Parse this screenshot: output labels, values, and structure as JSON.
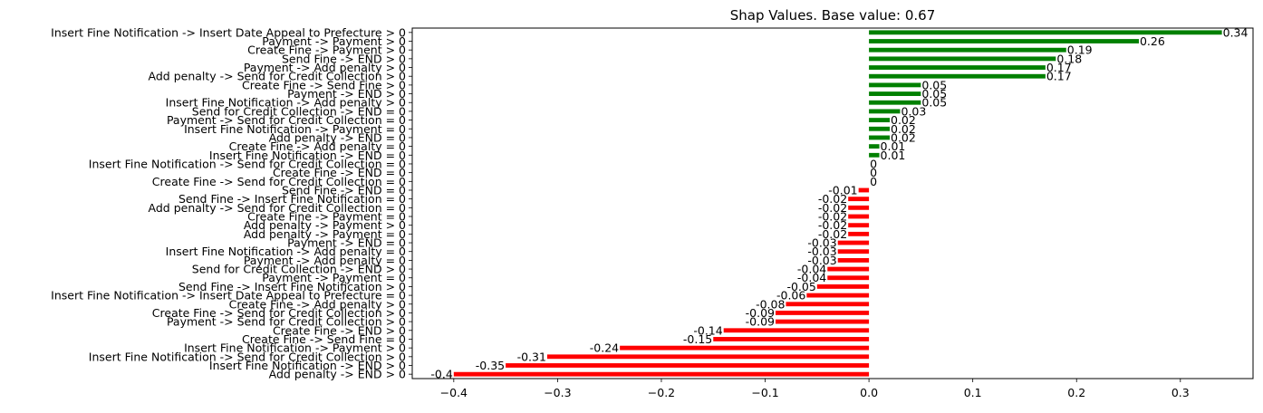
{
  "colors": {
    "positive": "#008000",
    "negative": "#ff0000",
    "axis": "#000000",
    "background": "#ffffff"
  },
  "chart_data": {
    "type": "bar",
    "orientation": "horizontal",
    "title": "Shap Values. Base value: 0.67",
    "xlabel": "",
    "ylabel": "",
    "xlim": [
      -0.44,
      0.37
    ],
    "xticks": [
      -0.4,
      -0.3,
      -0.2,
      -0.1,
      0.0,
      0.1,
      0.2,
      0.3
    ],
    "xtick_labels": [
      "−0.4",
      "−0.3",
      "−0.2",
      "−0.1",
      "0.0",
      "0.1",
      "0.2",
      "0.3"
    ],
    "grid": false,
    "legend": "none",
    "categories": [
      "Insert Fine Notification -> Insert Date Appeal to Prefecture > 0",
      "Payment -> Payment > 0",
      "Create Fine -> Payment > 0",
      "Send Fine -> END > 0",
      "Payment -> Add penalty > 0",
      "Add penalty -> Send for Credit Collection > 0",
      "Create Fine -> Send Fine > 0",
      "Payment -> END > 0",
      "Insert Fine Notification -> Add penalty > 0",
      "Send for Credit Collection -> END = 0",
      "Payment -> Send for Credit Collection = 0",
      "Insert Fine Notification -> Payment = 0",
      "Add penalty -> END = 0",
      "Create Fine -> Add penalty = 0",
      "Insert Fine Notification -> END = 0",
      "Insert Fine Notification -> Send for Credit Collection = 0",
      "Create Fine -> END = 0",
      "Create Fine -> Send for Credit Collection = 0",
      "Send Fine -> END = 0",
      "Send Fine -> Insert Fine Notification = 0",
      "Add penalty -> Send for Credit Collection = 0",
      "Create Fine -> Payment = 0",
      "Add penalty -> Payment > 0",
      "Add penalty -> Payment = 0",
      "Payment -> END = 0",
      "Insert Fine Notification -> Add penalty = 0",
      "Payment -> Add penalty = 0",
      "Send for Credit Collection -> END > 0",
      "Payment -> Payment = 0",
      "Send Fine -> Insert Fine Notification > 0",
      "Insert Fine Notification -> Insert Date Appeal to Prefecture = 0",
      "Create Fine -> Add penalty > 0",
      "Create Fine -> Send for Credit Collection > 0",
      "Payment -> Send for Credit Collection > 0",
      "Create Fine -> END > 0",
      "Create Fine -> Send Fine = 0",
      "Insert Fine Notification -> Payment > 0",
      "Insert Fine Notification -> Send for Credit Collection > 0",
      "Insert Fine Notification -> END > 0",
      "Add penalty -> END > 0"
    ],
    "values": [
      0.34,
      0.26,
      0.19,
      0.18,
      0.17,
      0.17,
      0.05,
      0.05,
      0.05,
      0.03,
      0.02,
      0.02,
      0.02,
      0.01,
      0.01,
      0,
      0,
      0,
      -0.01,
      -0.02,
      -0.02,
      -0.02,
      -0.02,
      -0.02,
      -0.03,
      -0.03,
      -0.03,
      -0.04,
      -0.04,
      -0.05,
      -0.06,
      -0.08,
      -0.09,
      -0.09,
      -0.14,
      -0.15,
      -0.24,
      -0.31,
      -0.35,
      -0.4
    ],
    "value_labels": [
      "0.34",
      "0.26",
      "0.19",
      "0.18",
      "0.17",
      "0.17",
      "0.05",
      "0.05",
      "0.05",
      "0.03",
      "0.02",
      "0.02",
      "0.02",
      "0.01",
      "0.01",
      "0",
      "0",
      "0",
      "-0.01",
      "-0.02",
      "-0.02",
      "-0.02",
      "-0.02",
      "-0.02",
      "-0.03",
      "-0.03",
      "-0.03",
      "-0.04",
      "-0.04",
      "-0.05",
      "-0.06",
      "-0.08",
      "-0.09",
      "-0.09",
      "-0.14",
      "-0.15",
      "-0.24",
      "-0.31",
      "-0.35",
      "-0.4"
    ]
  }
}
